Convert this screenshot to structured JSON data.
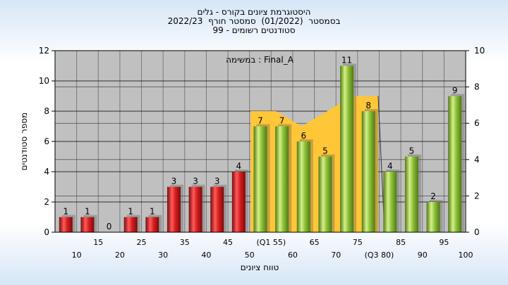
{
  "header": {
    "line1": "היסטוגרמת ציונים בקורס - גלים",
    "line2": "בסמסטר  (01/2022)  סמסטר חורף  2022/23",
    "line3": "סטודנטים רשומים - 99"
  },
  "annotation": "במשימה : Final_A",
  "colors": {
    "fail_bar": "#dd2222",
    "pass_bar": "#8fc13a",
    "area": "#ffc637",
    "plot_bg": "#c0c0c0"
  },
  "chart_data": {
    "type": "bar",
    "categories": [
      "10",
      "15",
      "20",
      "25",
      "30",
      "35",
      "40",
      "45",
      "50",
      "(Q1 55)",
      "60",
      "65",
      "70",
      "75",
      "(Q3 80)",
      "85",
      "90",
      "95",
      "100"
    ],
    "values": [
      1,
      1,
      0,
      1,
      1,
      3,
      3,
      3,
      4,
      7,
      7,
      6,
      5,
      11,
      8,
      4,
      5,
      2,
      9
    ],
    "bar_color_groups": [
      "fail",
      "fail",
      "fail",
      "fail",
      "fail",
      "fail",
      "fail",
      "fail",
      "fail",
      "pass",
      "pass",
      "pass",
      "pass",
      "pass",
      "pass",
      "pass",
      "pass",
      "pass",
      "pass"
    ],
    "area_series": {
      "from_category": "(Q1 55)",
      "to_category": "(Q3 80)",
      "values": [
        8,
        8,
        7,
        8,
        9,
        9
      ]
    },
    "xlabel": "טווח ציונים",
    "ylabel": "מספר סטודנטים",
    "ylim": [
      0,
      12
    ],
    "yticks": [
      0,
      2,
      4,
      6,
      8,
      10,
      12
    ],
    "y2lim": [
      0,
      10
    ],
    "y2ticks": [
      0,
      2,
      4,
      6,
      8,
      10
    ],
    "grid": true,
    "legend": "none"
  }
}
